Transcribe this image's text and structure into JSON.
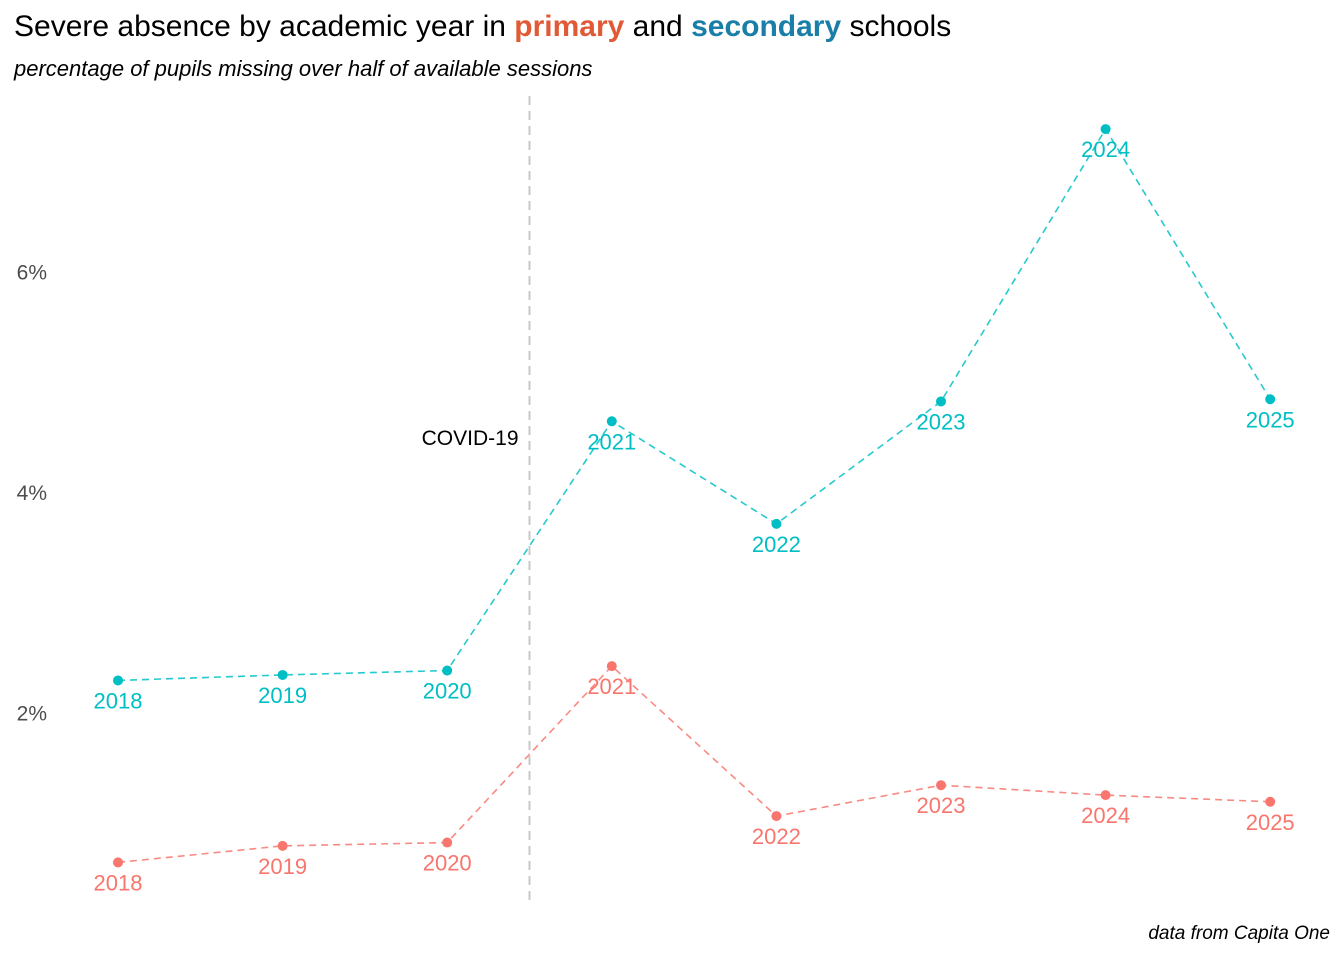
{
  "title": {
    "before": "Severe absence by academic year in ",
    "primary_word": "primary",
    "middle": " and ",
    "secondary_word": "secondary",
    "after": " schools"
  },
  "subtitle": "percentage of pupils missing over half of available sessions",
  "caption": "data from Capita One",
  "colors": {
    "primary": "#F8766D",
    "secondary": "#00BFC4",
    "title_primary": "#E05A35",
    "title_secondary": "#1A7FA8",
    "covid_line": "#c8c8c8"
  },
  "chart_data": {
    "type": "line",
    "x": [
      "2018",
      "2019",
      "2020",
      "2021",
      "2022",
      "2023",
      "2024",
      "2025"
    ],
    "series": [
      {
        "name": "primary",
        "values": [
          0.65,
          0.8,
          0.83,
          2.43,
          1.07,
          1.35,
          1.26,
          1.2
        ]
      },
      {
        "name": "secondary",
        "values": [
          2.3,
          2.35,
          2.39,
          4.65,
          3.72,
          4.83,
          7.3,
          4.85
        ]
      }
    ],
    "ylim": [
      0.3,
      7.6
    ],
    "yticks": [
      2,
      4,
      6
    ],
    "ytick_labels": [
      "2%",
      "4%",
      "6%"
    ],
    "grid": false,
    "legend": "none",
    "annotation": {
      "text": "COVID-19",
      "between": [
        "2020",
        "2021"
      ]
    },
    "xlabel": "",
    "ylabel": ""
  }
}
